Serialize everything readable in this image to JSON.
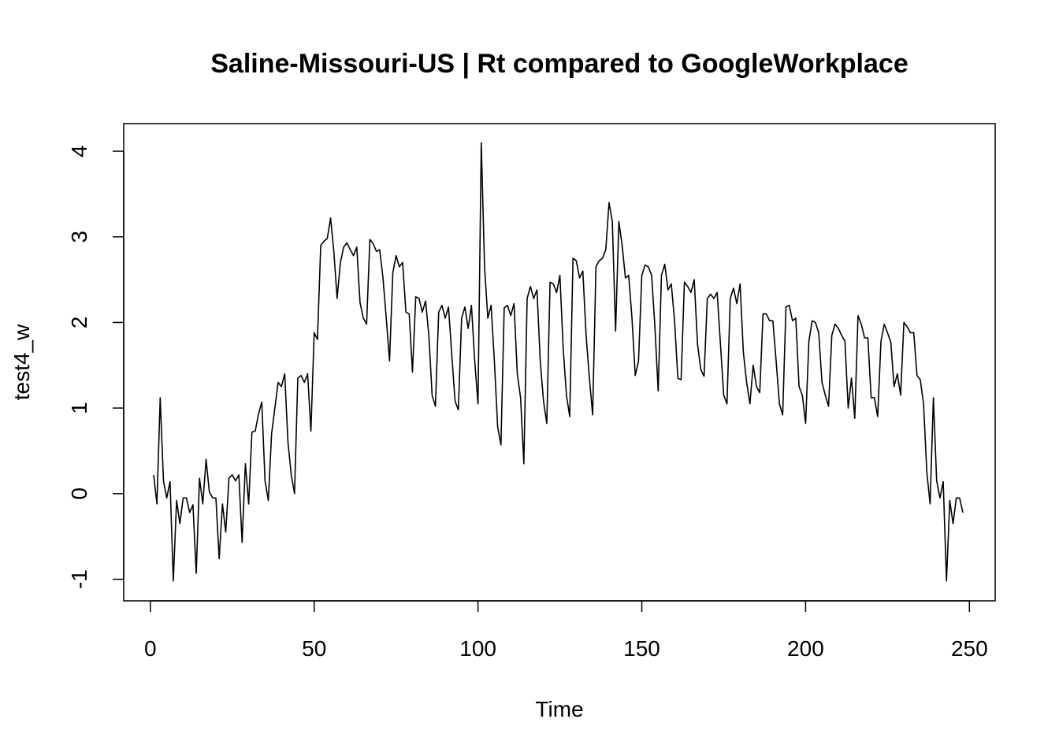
{
  "chart_data": {
    "type": "line",
    "title": "Saline-Missouri-US | Rt compared to GoogleWorkplace",
    "xlabel": "Time",
    "ylabel": "test4_w",
    "xlim": [
      1,
      248
    ],
    "ylim": [
      -1.05,
      4.12
    ],
    "x_ticks": [
      0,
      50,
      100,
      150,
      200,
      250
    ],
    "y_ticks": [
      -1,
      0,
      1,
      2,
      3,
      4
    ],
    "grid": false,
    "series": [
      {
        "x_start": 1,
        "values": [
          0.22,
          -0.12,
          1.12,
          0.15,
          -0.05,
          0.14,
          -1.02,
          -0.08,
          -0.35,
          -0.05,
          -0.05,
          -0.22,
          -0.13,
          -0.93,
          0.18,
          -0.12,
          0.4,
          0.02,
          -0.05,
          -0.05,
          -0.76,
          -0.12,
          -0.45,
          0.18,
          0.22,
          0.15,
          0.22,
          -0.57,
          0.35,
          -0.12,
          0.72,
          0.73,
          0.93,
          1.07,
          0.15,
          -0.08,
          0.7,
          1.0,
          1.3,
          1.25,
          1.4,
          0.6,
          0.22,
          0.0,
          1.35,
          1.38,
          1.3,
          1.4,
          0.73,
          1.88,
          1.8,
          2.9,
          2.95,
          2.98,
          3.22,
          2.83,
          2.28,
          2.7,
          2.88,
          2.93,
          2.85,
          2.78,
          2.88,
          2.23,
          2.05,
          1.98,
          2.97,
          2.92,
          2.83,
          2.85,
          2.52,
          2.05,
          1.55,
          2.58,
          2.78,
          2.65,
          2.7,
          2.12,
          2.1,
          1.42,
          2.3,
          2.28,
          2.12,
          2.25,
          1.85,
          1.15,
          1.02,
          2.12,
          2.2,
          2.05,
          2.18,
          1.62,
          1.08,
          0.98,
          2.05,
          2.18,
          1.93,
          2.2,
          1.55,
          1.05,
          4.1,
          2.65,
          2.05,
          2.2,
          1.55,
          0.78,
          0.57,
          2.17,
          2.2,
          2.08,
          2.22,
          1.4,
          1.12,
          0.35,
          2.28,
          2.42,
          2.28,
          2.38,
          1.55,
          1.08,
          0.82,
          2.47,
          2.45,
          2.35,
          2.55,
          1.7,
          1.15,
          0.9,
          2.75,
          2.72,
          2.52,
          2.6,
          1.85,
          1.35,
          0.92,
          2.65,
          2.72,
          2.75,
          2.85,
          3.4,
          3.18,
          1.9,
          3.18,
          2.9,
          2.52,
          2.55,
          2.05,
          1.38,
          1.55,
          2.55,
          2.67,
          2.65,
          2.55,
          1.95,
          1.2,
          2.55,
          2.68,
          2.38,
          2.45,
          2.02,
          1.35,
          1.33,
          2.47,
          2.42,
          2.35,
          2.5,
          1.75,
          1.45,
          1.37,
          2.28,
          2.33,
          2.28,
          2.35,
          1.75,
          1.15,
          1.05,
          2.28,
          2.4,
          2.22,
          2.45,
          1.65,
          1.3,
          1.05,
          1.5,
          1.25,
          1.18,
          2.1,
          2.1,
          2.02,
          2.02,
          1.55,
          1.05,
          0.92,
          2.18,
          2.2,
          2.02,
          2.05,
          1.25,
          1.15,
          0.82,
          1.78,
          2.02,
          2.0,
          1.88,
          1.3,
          1.15,
          1.02,
          1.85,
          1.98,
          1.93,
          1.85,
          1.78,
          1.0,
          1.35,
          0.88,
          2.08,
          1.98,
          1.82,
          1.82,
          1.12,
          1.12,
          0.9,
          1.78,
          1.98,
          1.88,
          1.77,
          1.25,
          1.4,
          1.15,
          2.0,
          1.95,
          1.88,
          1.88,
          1.38,
          1.33,
          1.05,
          0.25,
          -0.12,
          1.12,
          0.15,
          -0.05,
          0.14,
          -1.02,
          -0.08,
          -0.35,
          -0.05,
          -0.05,
          -0.22
        ]
      }
    ]
  }
}
